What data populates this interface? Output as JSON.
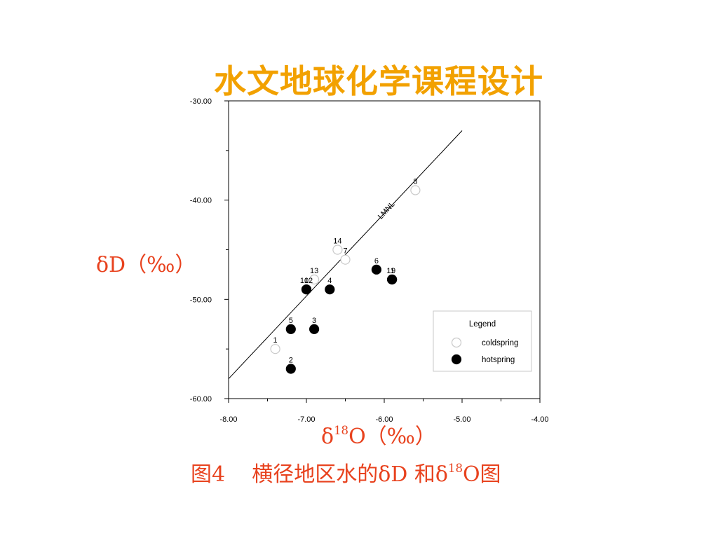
{
  "slide_title": "水文地球化学课程设计",
  "y_axis_label": {
    "main": "δD（‰）"
  },
  "x_axis_label": {
    "prefix": "δ",
    "sup": "18",
    "suffix": "O（‰）"
  },
  "caption": {
    "part1": "图4    横径地区水的δD 和δ",
    "sup": "18",
    "part2": "O图"
  },
  "colors": {
    "title": "#f2a100",
    "labels": "#e8421e",
    "hot": "#000000",
    "cold_stroke": "#c8c8c8"
  },
  "chart_data": {
    "type": "scatter",
    "xlim": [
      -8.0,
      -4.0
    ],
    "ylim": [
      -60.0,
      -30.0
    ],
    "x_ticks": [
      "-8.00",
      "-7.00",
      "-6.00",
      "-5.00",
      "-4.00"
    ],
    "y_ticks": [
      "-30.00",
      "-40.00",
      "-50.00",
      "-60.00"
    ],
    "grid": false,
    "legend_position": "lower-right",
    "legend_title": "Legend",
    "series": [
      {
        "name": "coldspring",
        "marker": "open-circle",
        "points": [
          {
            "label": "1",
            "x": -7.4,
            "y": -55.0
          },
          {
            "label": "7",
            "x": -6.5,
            "y": -46.0
          },
          {
            "label": "8",
            "x": -5.6,
            "y": -39.0
          },
          {
            "label": "13",
            "x": -6.9,
            "y": -48.0
          },
          {
            "label": "14",
            "x": -6.6,
            "y": -45.0
          }
        ]
      },
      {
        "name": "hotspring",
        "marker": "filled-circle",
        "points": [
          {
            "label": "2",
            "x": -7.2,
            "y": -57.0
          },
          {
            "label": "3",
            "x": -6.9,
            "y": -53.0
          },
          {
            "label": "4",
            "x": -6.7,
            "y": -49.0
          },
          {
            "label": "5",
            "x": -7.2,
            "y": -53.0
          },
          {
            "label": "6",
            "x": -6.1,
            "y": -47.0
          },
          {
            "label": "9",
            "x": -5.9,
            "y": -48.0
          },
          {
            "label": "10",
            "x": -7.0,
            "y": -49.0
          },
          {
            "label": "11",
            "x": -5.9,
            "y": -48.0
          },
          {
            "label": "12",
            "x": -7.0,
            "y": -49.0
          }
        ]
      }
    ],
    "line": {
      "label": "LMNL",
      "from": {
        "x": -8.0,
        "y": -58.0
      },
      "to": {
        "x": -5.0,
        "y": -33.0
      }
    }
  }
}
